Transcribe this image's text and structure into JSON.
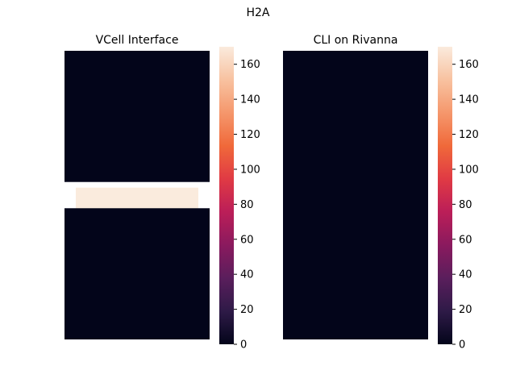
{
  "figure": {
    "title": "H2A"
  },
  "colorbar": {
    "colors": [
      "#03051a",
      "#2e1a47",
      "#5a1e5c",
      "#8a1a5e",
      "#bb1e58",
      "#e03a44",
      "#f0693a",
      "#f5976c",
      "#f8c2a0",
      "#faebdd"
    ],
    "ticks": [
      0,
      20,
      40,
      60,
      80,
      100,
      120,
      140,
      160
    ],
    "vmin": 0,
    "vmax": 170
  },
  "chart_data": [
    {
      "type": "heatmap",
      "title": "VCell Interface",
      "grid": {
        "rows": 22,
        "cols": 1
      },
      "cells": [
        {
          "row_start": 0,
          "row_end": 10,
          "value": 0
        },
        {
          "row_start": 10,
          "row_end": 12,
          "value": 170,
          "inset": true
        },
        {
          "row_start": 12,
          "row_end": 22,
          "value": 0
        }
      ],
      "xlabel": "",
      "ylabel": ""
    },
    {
      "type": "heatmap",
      "title": "CLI on Rivanna",
      "grid": {
        "rows": 22,
        "cols": 1
      },
      "cells": [
        {
          "row_start": 0,
          "row_end": 22,
          "value": 0
        }
      ],
      "xlabel": "",
      "ylabel": ""
    }
  ]
}
